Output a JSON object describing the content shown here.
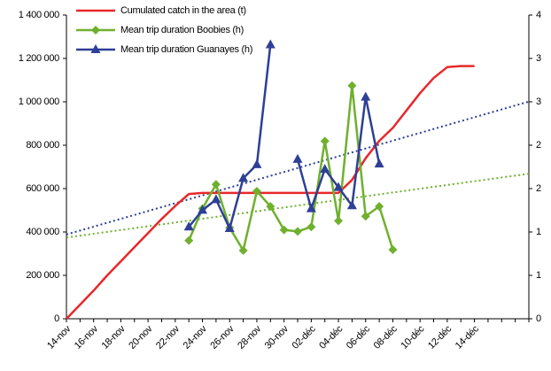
{
  "chart_data": {
    "type": "line",
    "categories": [
      "14-nov",
      null,
      "16-nov",
      null,
      "18-nov",
      null,
      "20-nov",
      null,
      "22-nov",
      null,
      "24-nov",
      null,
      "26-nov",
      null,
      "28-nov",
      null,
      "30-nov",
      null,
      "02-déc",
      null,
      "04-déc",
      null,
      "06-déc",
      null,
      "08-déc",
      null,
      "10-déc",
      null,
      "12-déc",
      null,
      "14-déc",
      null,
      null,
      null,
      null
    ],
    "series": [
      {
        "name": "Cumulated catch in the area (t)",
        "color": "#e8282b",
        "marker": "none",
        "values": [
          0,
          65000,
          130000,
          200000,
          265000,
          330000,
          395000,
          460000,
          520000,
          575000,
          580000,
          580000,
          580000,
          580000,
          580000,
          580000,
          580000,
          580000,
          580000,
          580000,
          580000,
          640000,
          740000,
          820000,
          880000,
          960000,
          1040000,
          1110000,
          1160000,
          1165000,
          1165000,
          null,
          null,
          null,
          null
        ]
      },
      {
        "name": "Mean trip duration Boobies (h)",
        "color": "#6fb02e",
        "marker": "diamond",
        "axis": "y2",
        "values": [
          null,
          null,
          null,
          null,
          null,
          null,
          null,
          null,
          null,
          1.03,
          1.45,
          1.77,
          1.2,
          0.9,
          1.68,
          1.48,
          1.17,
          1.15,
          1.21,
          2.34,
          1.29,
          3.07,
          1.35,
          1.48,
          0.91,
          null,
          null,
          null,
          null,
          null,
          null,
          null,
          null,
          null,
          null
        ]
      },
      {
        "name": "Mean trip duration Guanayes (h)",
        "color": "#2e3f96",
        "marker": "triangle",
        "axis": "y2",
        "values": [
          null,
          null,
          null,
          null,
          null,
          null,
          null,
          null,
          null,
          1.21,
          1.43,
          1.57,
          1.19,
          1.85,
          2.03,
          3.61,
          null,
          2.1,
          1.45,
          1.97,
          1.73,
          1.49,
          2.92,
          2.04,
          null,
          null,
          null,
          null,
          null,
          null,
          null,
          null,
          null,
          null,
          null
        ]
      }
    ],
    "trendlines": [
      {
        "color": "#2e3f96",
        "axis": "y2",
        "x": [
          0,
          34
        ],
        "values": [
          1.11,
          2.86
        ]
      },
      {
        "color": "#6fb02e",
        "axis": "y2",
        "x": [
          0,
          34
        ],
        "values": [
          1.07,
          1.91
        ]
      }
    ],
    "ylim": [
      0,
      1400000
    ],
    "yticks": [
      0,
      {
        "value": 200000,
        "label": "200 000"
      },
      {
        "value": 400000,
        "label": "400 000"
      },
      {
        "value": 600000,
        "label": "600 000"
      },
      {
        "value": 800000,
        "label": "800 000"
      },
      {
        "value": 1000000,
        "label": "1 000 000"
      },
      {
        "value": 1200000,
        "label": "1 200 000"
      },
      {
        "value": 1400000,
        "label": "1 400 000"
      }
    ],
    "y2lim": [
      0,
      4
    ],
    "y2ticks": [
      0,
      {
        "value": 0.5714,
        "label": "1"
      },
      {
        "value": 1.1429,
        "label": "1"
      },
      {
        "value": 1.7143,
        "label": "2"
      },
      {
        "value": 2.2857,
        "label": "2"
      },
      {
        "value": 2.8571,
        "label": "3"
      },
      {
        "value": 3.4286,
        "label": "3"
      },
      4
    ],
    "grid": false,
    "legend": "top-left"
  }
}
